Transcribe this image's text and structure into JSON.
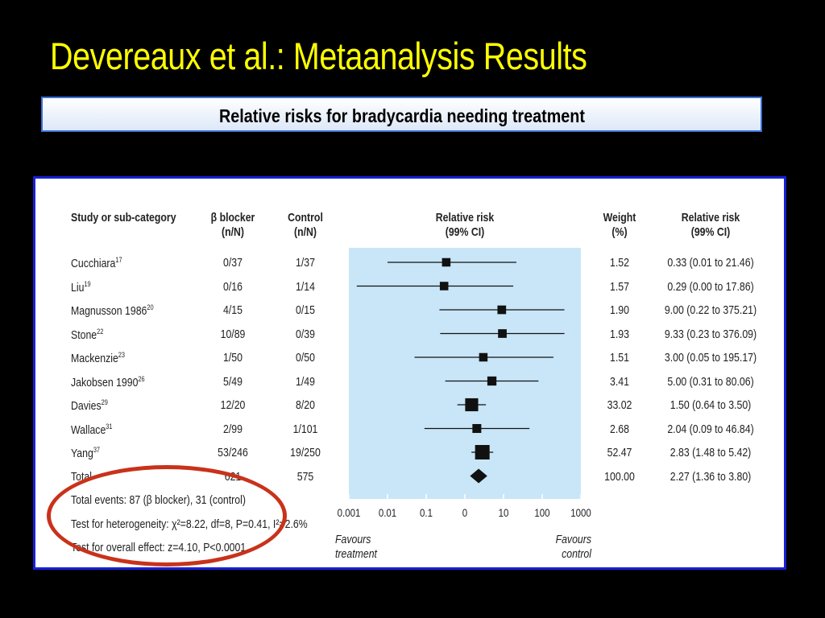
{
  "slide": {
    "title": "Devereaux et al.: Metaanalysis Results",
    "subtitle": "Relative risks for bradycardia needing treatment"
  },
  "table": {
    "headers": {
      "study_l1": "Study or sub-category",
      "beta_l1": "β blocker",
      "beta_l2": "(n/N)",
      "control_l1": "Control",
      "control_l2": "(n/N)",
      "plot_l1": "Relative risk",
      "plot_l2": "(99% CI)",
      "weight_l1": "Weight",
      "weight_l2": "(%)",
      "rr_l1": "Relative risk",
      "rr_l2": "(99% CI)"
    },
    "rows": [
      {
        "study": "Cucchiara",
        "ref": "17",
        "beta": "0/37",
        "control": "1/37",
        "weight": "1.52",
        "rr": "0.33 (0.01 to 21.46)"
      },
      {
        "study": "Liu",
        "ref": "19",
        "beta": "0/16",
        "control": "1/14",
        "weight": "1.57",
        "rr": "0.29 (0.00 to 17.86)"
      },
      {
        "study": "Magnusson 1986",
        "ref": "20",
        "beta": "4/15",
        "control": "0/15",
        "weight": "1.90",
        "rr": "9.00 (0.22 to 375.21)"
      },
      {
        "study": "Stone",
        "ref": "22",
        "beta": "10/89",
        "control": "0/39",
        "weight": "1.93",
        "rr": "9.33 (0.23 to 376.09)"
      },
      {
        "study": "Mackenzie",
        "ref": "23",
        "beta": "1/50",
        "control": "0/50",
        "weight": "1.51",
        "rr": "3.00 (0.05 to 195.17)"
      },
      {
        "study": "Jakobsen 1990",
        "ref": "26",
        "beta": "5/49",
        "control": "1/49",
        "weight": "3.41",
        "rr": "5.00 (0.31 to 80.06)"
      },
      {
        "study": "Davies",
        "ref": "29",
        "beta": "12/20",
        "control": "8/20",
        "weight": "33.02",
        "rr": "1.50 (0.64 to 3.50)"
      },
      {
        "study": "Wallace",
        "ref": "31",
        "beta": "2/99",
        "control": "1/101",
        "weight": "2.68",
        "rr": "2.04 (0.09 to 46.84)"
      },
      {
        "study": "Yang",
        "ref": "37",
        "beta": "53/246",
        "control": "19/250",
        "weight": "52.47",
        "rr": "2.83 (1.48 to 5.42)"
      }
    ],
    "total": {
      "study": "Total",
      "beta": "621",
      "control": "575",
      "weight": "100.00",
      "rr": "2.27 (1.36 to 3.80)"
    },
    "footer": {
      "events": "Total events: 87 (β blocker), 31 (control)",
      "heterogeneity": "Test for heterogeneity: χ²=8.22, df=8, P=0.41, I²=2.6%",
      "overall": "Test for overall effect: z=4.10, P<0.0001"
    },
    "favours_left_l1": "Favours",
    "favours_left_l2": "treatment",
    "favours_right_l1": "Favours",
    "favours_right_l2": "control"
  },
  "chart_data": {
    "type": "forest",
    "x_scale": "log",
    "x_ticks": [
      "0.001",
      "0.01",
      "0.1",
      "0",
      "10",
      "100",
      "1000"
    ],
    "xlim": [
      0.001,
      1000
    ],
    "plot_bg_color": "#c8e6f8",
    "points": [
      {
        "name": "Cucchiara",
        "rr": 0.33,
        "lo": 0.01,
        "hi": 21.46,
        "weight": 1.52
      },
      {
        "name": "Liu",
        "rr": 0.29,
        "lo": 0.0016,
        "hi": 17.86,
        "weight": 1.57
      },
      {
        "name": "Magnusson 1986",
        "rr": 9.0,
        "lo": 0.22,
        "hi": 375.21,
        "weight": 1.9
      },
      {
        "name": "Stone",
        "rr": 9.33,
        "lo": 0.23,
        "hi": 376.09,
        "weight": 1.93
      },
      {
        "name": "Mackenzie",
        "rr": 3.0,
        "lo": 0.05,
        "hi": 195.17,
        "weight": 1.51
      },
      {
        "name": "Jakobsen 1990",
        "rr": 5.0,
        "lo": 0.31,
        "hi": 80.06,
        "weight": 3.41
      },
      {
        "name": "Davies",
        "rr": 1.5,
        "lo": 0.64,
        "hi": 3.5,
        "weight": 33.02
      },
      {
        "name": "Wallace",
        "rr": 2.04,
        "lo": 0.09,
        "hi": 46.84,
        "weight": 2.68
      },
      {
        "name": "Yang",
        "rr": 2.83,
        "lo": 1.48,
        "hi": 5.42,
        "weight": 52.47
      }
    ],
    "total": {
      "rr": 2.27,
      "lo": 1.36,
      "hi": 3.8
    },
    "highlight_color": "#c9321a"
  }
}
